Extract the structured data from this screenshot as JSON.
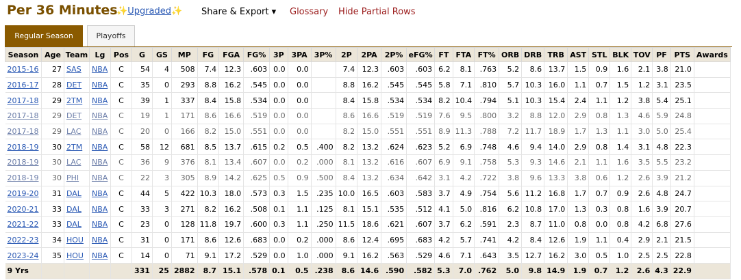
{
  "header": {
    "title": "Per 36 Minutes",
    "upgraded_spark": "✨",
    "upgraded_label": "Upgraded",
    "share_label": "Share & Export ▾",
    "glossary_label": "Glossary",
    "hide_partial_label": "Hide Partial Rows"
  },
  "tabs": [
    {
      "label": "Regular Season",
      "active": true
    },
    {
      "label": "Playoffs",
      "active": false
    }
  ],
  "columns": [
    "Season",
    "Age",
    "Team",
    "Lg",
    "Pos",
    "G",
    "GS",
    "MP",
    "FG",
    "FGA",
    "FG%",
    "3P",
    "3PA",
    "3P%",
    "2P",
    "2PA",
    "2P%",
    "eFG%",
    "FT",
    "FTA",
    "FT%",
    "ORB",
    "DRB",
    "TRB",
    "AST",
    "STL",
    "BLK",
    "TOV",
    "PF",
    "PTS",
    "Awards"
  ],
  "rows": [
    {
      "partial": false,
      "cells": [
        "2015-16",
        "27",
        "SAS",
        "NBA",
        "C",
        "54",
        "4",
        "508",
        "7.4",
        "12.3",
        ".603",
        "0.0",
        "0.0",
        "",
        "7.4",
        "12.3",
        ".603",
        ".603",
        "6.2",
        "8.1",
        ".763",
        "5.2",
        "8.6",
        "13.7",
        "1.5",
        "0.9",
        "1.6",
        "2.1",
        "3.8",
        "21.0",
        ""
      ]
    },
    {
      "partial": false,
      "cells": [
        "2016-17",
        "28",
        "DET",
        "NBA",
        "C",
        "35",
        "0",
        "293",
        "8.8",
        "16.2",
        ".545",
        "0.0",
        "0.0",
        "",
        "8.8",
        "16.2",
        ".545",
        ".545",
        "5.8",
        "7.1",
        ".810",
        "5.7",
        "10.3",
        "16.0",
        "1.1",
        "0.7",
        "1.5",
        "1.2",
        "3.1",
        "23.5",
        ""
      ]
    },
    {
      "partial": false,
      "cells": [
        "2017-18",
        "29",
        "2TM",
        "NBA",
        "C",
        "39",
        "1",
        "337",
        "8.4",
        "15.8",
        ".534",
        "0.0",
        "0.0",
        "",
        "8.4",
        "15.8",
        ".534",
        ".534",
        "8.2",
        "10.4",
        ".794",
        "5.1",
        "10.3",
        "15.4",
        "2.4",
        "1.1",
        "1.2",
        "3.8",
        "5.4",
        "25.1",
        ""
      ]
    },
    {
      "partial": true,
      "cells": [
        "2017-18",
        "29",
        "DET",
        "NBA",
        "C",
        "19",
        "1",
        "171",
        "8.6",
        "16.6",
        ".519",
        "0.0",
        "0.0",
        "",
        "8.6",
        "16.6",
        ".519",
        ".519",
        "7.6",
        "9.5",
        ".800",
        "3.2",
        "8.8",
        "12.0",
        "2.9",
        "0.8",
        "1.3",
        "4.6",
        "5.9",
        "24.8",
        ""
      ]
    },
    {
      "partial": true,
      "cells": [
        "2017-18",
        "29",
        "LAC",
        "NBA",
        "C",
        "20",
        "0",
        "166",
        "8.2",
        "15.0",
        ".551",
        "0.0",
        "0.0",
        "",
        "8.2",
        "15.0",
        ".551",
        ".551",
        "8.9",
        "11.3",
        ".788",
        "7.2",
        "11.7",
        "18.9",
        "1.7",
        "1.3",
        "1.1",
        "3.0",
        "5.0",
        "25.4",
        ""
      ]
    },
    {
      "partial": false,
      "cells": [
        "2018-19",
        "30",
        "2TM",
        "NBA",
        "C",
        "58",
        "12",
        "681",
        "8.5",
        "13.7",
        ".615",
        "0.2",
        "0.5",
        ".400",
        "8.2",
        "13.2",
        ".624",
        ".623",
        "5.2",
        "6.9",
        ".748",
        "4.6",
        "9.4",
        "14.0",
        "2.9",
        "0.8",
        "1.4",
        "3.1",
        "4.8",
        "22.3",
        ""
      ]
    },
    {
      "partial": true,
      "cells": [
        "2018-19",
        "30",
        "LAC",
        "NBA",
        "C",
        "36",
        "9",
        "376",
        "8.1",
        "13.4",
        ".607",
        "0.0",
        "0.2",
        ".000",
        "8.1",
        "13.2",
        ".616",
        ".607",
        "6.9",
        "9.1",
        ".758",
        "5.3",
        "9.3",
        "14.6",
        "2.1",
        "1.1",
        "1.6",
        "3.5",
        "5.5",
        "23.2",
        ""
      ]
    },
    {
      "partial": true,
      "cells": [
        "2018-19",
        "30",
        "PHI",
        "NBA",
        "C",
        "22",
        "3",
        "305",
        "8.9",
        "14.2",
        ".625",
        "0.5",
        "0.9",
        ".500",
        "8.4",
        "13.2",
        ".634",
        ".642",
        "3.1",
        "4.2",
        ".722",
        "3.8",
        "9.6",
        "13.3",
        "3.8",
        "0.6",
        "1.2",
        "2.6",
        "3.9",
        "21.2",
        ""
      ]
    },
    {
      "partial": false,
      "cells": [
        "2019-20",
        "31",
        "DAL",
        "NBA",
        "C",
        "44",
        "5",
        "422",
        "10.3",
        "18.0",
        ".573",
        "0.3",
        "1.5",
        ".235",
        "10.0",
        "16.5",
        ".603",
        ".583",
        "3.7",
        "4.9",
        ".754",
        "5.6",
        "11.2",
        "16.8",
        "1.7",
        "0.7",
        "0.9",
        "2.6",
        "4.8",
        "24.7",
        ""
      ]
    },
    {
      "partial": false,
      "cells": [
        "2020-21",
        "33",
        "DAL",
        "NBA",
        "C",
        "33",
        "3",
        "271",
        "8.2",
        "16.2",
        ".508",
        "0.1",
        "1.1",
        ".125",
        "8.1",
        "15.1",
        ".535",
        ".512",
        "4.1",
        "5.0",
        ".816",
        "6.2",
        "10.8",
        "17.0",
        "1.3",
        "0.3",
        "0.8",
        "1.6",
        "3.9",
        "20.7",
        ""
      ]
    },
    {
      "partial": false,
      "cells": [
        "2021-22",
        "33",
        "DAL",
        "NBA",
        "C",
        "23",
        "0",
        "128",
        "11.8",
        "19.7",
        ".600",
        "0.3",
        "1.1",
        ".250",
        "11.5",
        "18.6",
        ".621",
        ".607",
        "3.7",
        "6.2",
        ".591",
        "2.3",
        "8.7",
        "11.0",
        "0.8",
        "0.0",
        "0.8",
        "4.2",
        "6.8",
        "27.6",
        ""
      ]
    },
    {
      "partial": false,
      "cells": [
        "2022-23",
        "34",
        "HOU",
        "NBA",
        "C",
        "31",
        "0",
        "171",
        "8.6",
        "12.6",
        ".683",
        "0.0",
        "0.2",
        ".000",
        "8.6",
        "12.4",
        ".695",
        ".683",
        "4.2",
        "5.7",
        ".741",
        "4.2",
        "8.4",
        "12.6",
        "1.9",
        "1.1",
        "0.4",
        "2.9",
        "2.1",
        "21.5",
        ""
      ]
    },
    {
      "partial": false,
      "cells": [
        "2023-24",
        "35",
        "HOU",
        "NBA",
        "C",
        "14",
        "0",
        "71",
        "9.1",
        "17.2",
        ".529",
        "0.0",
        "1.0",
        ".000",
        "9.1",
        "16.2",
        ".563",
        ".529",
        "4.6",
        "7.1",
        ".643",
        "3.5",
        "12.7",
        "16.2",
        "3.0",
        "0.5",
        "1.0",
        "2.5",
        "2.5",
        "22.8",
        ""
      ]
    }
  ],
  "total": [
    "9 Yrs",
    "",
    "",
    "",
    "",
    "331",
    "25",
    "2882",
    "8.7",
    "15.1",
    ".578",
    "0.1",
    "0.5",
    ".238",
    "8.6",
    "14.6",
    ".590",
    ".582",
    "5.3",
    "7.0",
    ".762",
    "5.0",
    "9.8",
    "14.9",
    "1.9",
    "0.7",
    "1.2",
    "2.6",
    "4.3",
    "22.9",
    ""
  ]
}
